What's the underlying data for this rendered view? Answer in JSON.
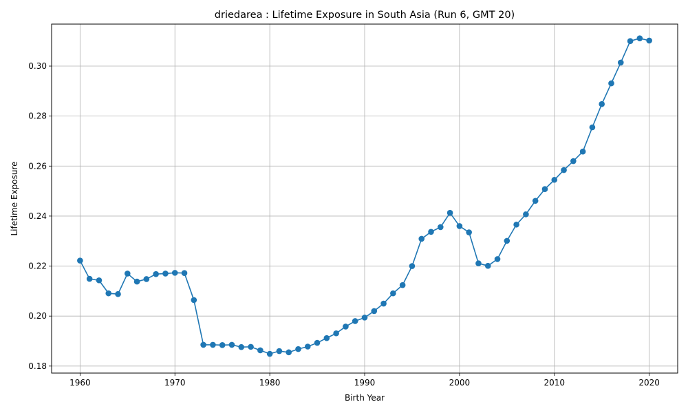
{
  "chart_data": {
    "type": "line",
    "title": "driedarea : Lifetime Exposure in South Asia (Run 6, GMT 20)",
    "xlabel": "Birth Year",
    "ylabel": "Lifetime Exposure",
    "xlim": [
      1957,
      2023
    ],
    "ylim": [
      0.1772,
      0.3168
    ],
    "xticks": [
      1960,
      1970,
      1980,
      1990,
      2000,
      2010,
      2020
    ],
    "yticks": [
      0.18,
      0.2,
      0.22,
      0.24,
      0.26,
      0.28,
      0.3
    ],
    "ytick_labels": [
      "0.18",
      "0.20",
      "0.22",
      "0.24",
      "0.26",
      "0.28",
      "0.30"
    ],
    "grid": true,
    "legend": "none",
    "series": [
      {
        "color": "#1f77b4",
        "marker": "circle",
        "x": [
          1960,
          1961,
          1962,
          1963,
          1964,
          1965,
          1966,
          1967,
          1968,
          1969,
          1970,
          1971,
          1972,
          1973,
          1974,
          1975,
          1976,
          1977,
          1978,
          1979,
          1980,
          1981,
          1982,
          1983,
          1984,
          1985,
          1986,
          1987,
          1988,
          1989,
          1990,
          1991,
          1992,
          1993,
          1994,
          1995,
          1996,
          1997,
          1998,
          1999,
          2000,
          2001,
          2002,
          2003,
          2004,
          2005,
          2006,
          2007,
          2008,
          2009,
          2010,
          2011,
          2012,
          2013,
          2014,
          2015,
          2016,
          2017,
          2018,
          2019,
          2020
        ],
        "y": [
          0.2222,
          0.2149,
          0.2143,
          0.2091,
          0.2088,
          0.217,
          0.2138,
          0.2148,
          0.2168,
          0.217,
          0.2173,
          0.2172,
          0.2064,
          0.1885,
          0.1885,
          0.1884,
          0.1885,
          0.1876,
          0.1877,
          0.1863,
          0.1849,
          0.186,
          0.1855,
          0.1868,
          0.1878,
          0.1893,
          0.1912,
          0.1931,
          0.1958,
          0.198,
          0.1994,
          0.202,
          0.205,
          0.2091,
          0.2124,
          0.22,
          0.2309,
          0.2337,
          0.2356,
          0.2413,
          0.236,
          0.2335,
          0.2211,
          0.2201,
          0.2228,
          0.2301,
          0.2366,
          0.2407,
          0.2461,
          0.2508,
          0.2545,
          0.2584,
          0.262,
          0.2658,
          0.2755,
          0.2848,
          0.2931,
          0.3014,
          0.31,
          0.3111,
          0.3102
        ]
      }
    ]
  }
}
